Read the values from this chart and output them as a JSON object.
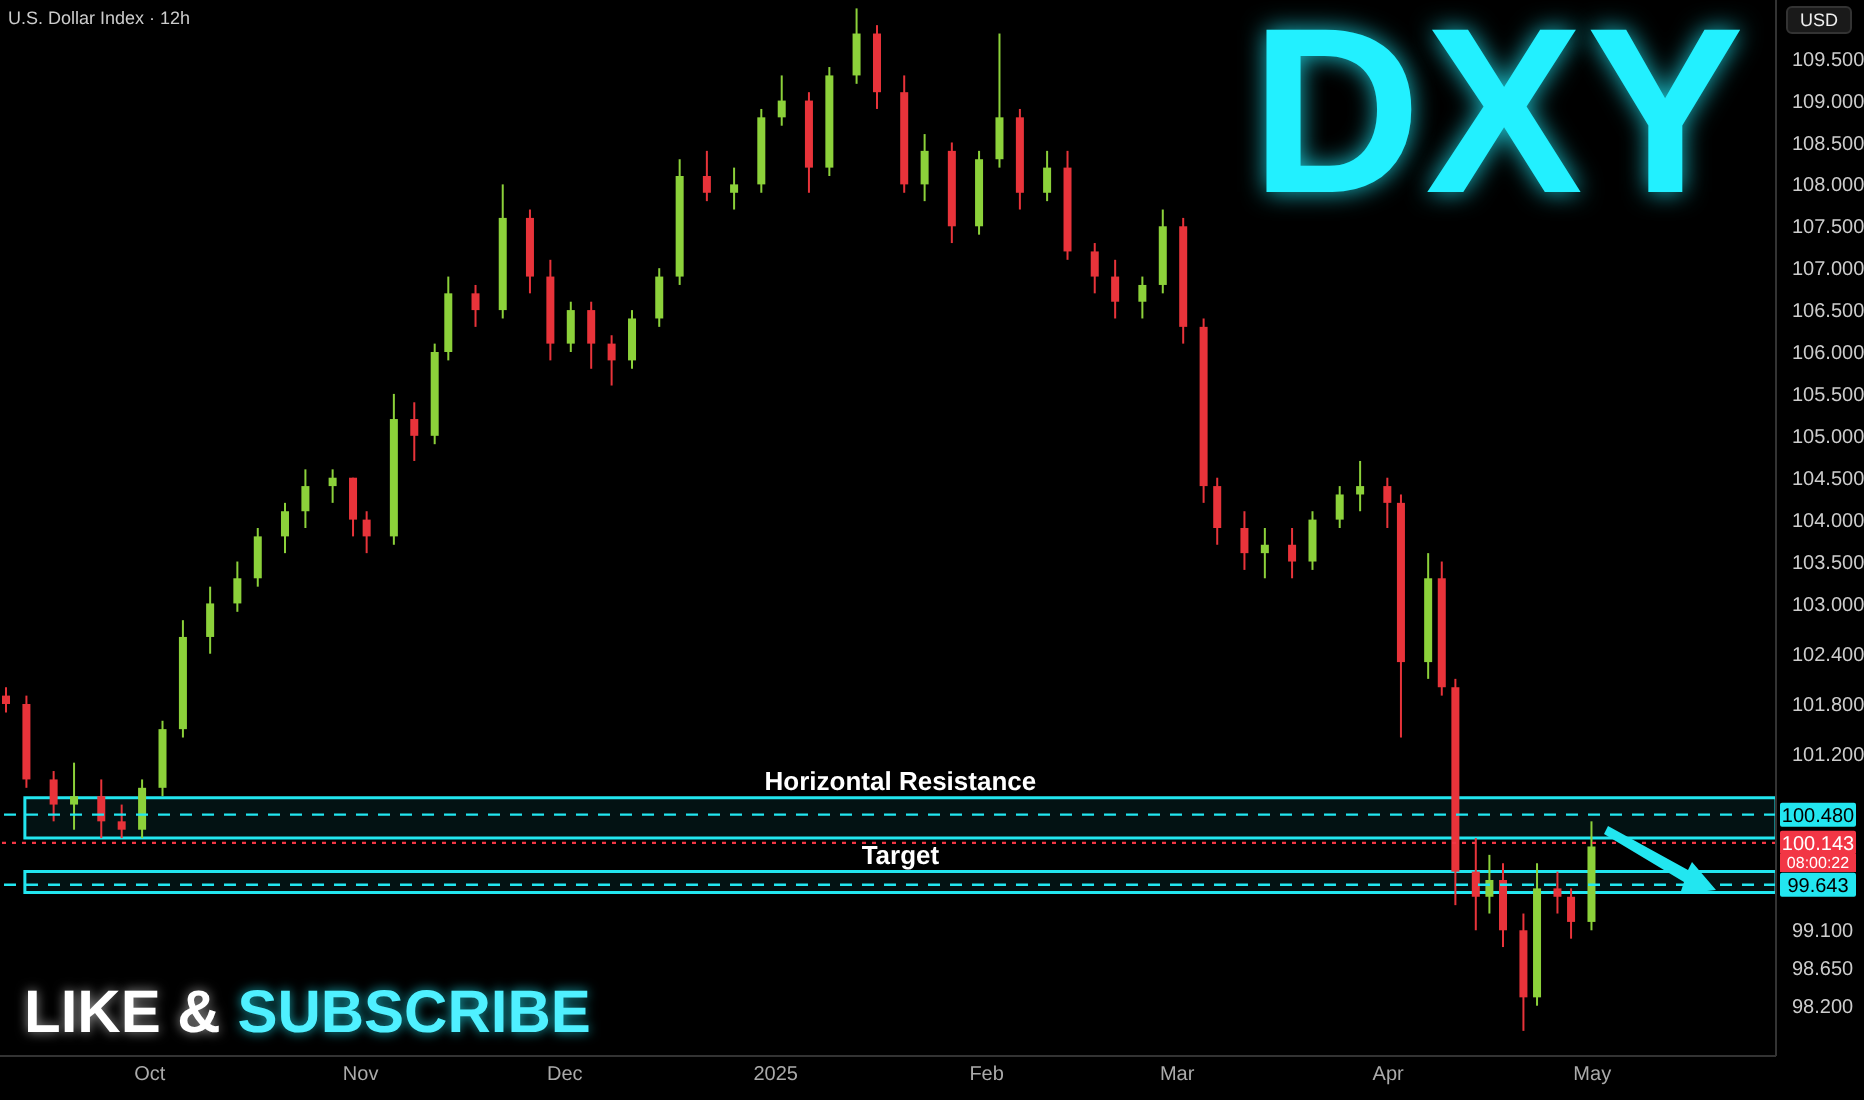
{
  "chart_data": {
    "type": "candlestick",
    "title": "U.S. Dollar Index · 12h",
    "ylabel": "USD",
    "x": [
      "2024-09-10",
      "2024-09-13",
      "2024-09-17",
      "2024-09-20",
      "2024-09-24",
      "2024-09-27",
      "2024-09-30",
      "2024-10-03",
      "2024-10-06",
      "2024-10-10",
      "2024-10-14",
      "2024-10-17",
      "2024-10-21",
      "2024-10-24",
      "2024-10-28",
      "2024-10-31",
      "2024-11-02",
      "2024-11-06",
      "2024-11-09",
      "2024-11-12",
      "2024-11-14",
      "2024-11-18",
      "2024-11-22",
      "2024-11-26",
      "2024-11-29",
      "2024-12-02",
      "2024-12-05",
      "2024-12-08",
      "2024-12-11",
      "2024-12-15",
      "2024-12-18",
      "2024-12-22",
      "2024-12-26",
      "2024-12-30",
      "2025-01-02",
      "2025-01-06",
      "2025-01-09",
      "2025-01-13",
      "2025-01-16",
      "2025-01-20",
      "2025-01-23",
      "2025-01-27",
      "2025-01-31",
      "2025-02-03",
      "2025-02-06",
      "2025-02-10",
      "2025-02-13",
      "2025-02-17",
      "2025-02-20",
      "2025-02-24",
      "2025-02-27",
      "2025-03-02",
      "2025-03-05",
      "2025-03-07",
      "2025-03-11",
      "2025-03-14",
      "2025-03-18",
      "2025-03-21",
      "2025-03-25",
      "2025-03-28",
      "2025-04-01",
      "2025-04-03",
      "2025-04-07",
      "2025-04-09",
      "2025-04-11",
      "2025-04-14",
      "2025-04-16",
      "2025-04-18",
      "2025-04-21",
      "2025-04-23",
      "2025-04-26",
      "2025-04-28",
      "2025-05-01"
    ],
    "ohlc": [
      [
        101.9,
        102.0,
        101.7,
        101.8
      ],
      [
        101.8,
        101.9,
        100.8,
        100.9
      ],
      [
        100.9,
        101.0,
        100.4,
        100.6
      ],
      [
        100.6,
        101.1,
        100.3,
        100.7
      ],
      [
        100.7,
        100.9,
        100.2,
        100.4
      ],
      [
        100.4,
        100.6,
        100.2,
        100.3
      ],
      [
        100.3,
        100.9,
        100.2,
        100.8
      ],
      [
        100.8,
        101.6,
        100.7,
        101.5
      ],
      [
        101.5,
        102.8,
        101.4,
        102.6
      ],
      [
        102.6,
        103.2,
        102.4,
        103.0
      ],
      [
        103.0,
        103.5,
        102.9,
        103.3
      ],
      [
        103.3,
        103.9,
        103.2,
        103.8
      ],
      [
        103.8,
        104.2,
        103.6,
        104.1
      ],
      [
        104.1,
        104.6,
        103.9,
        104.4
      ],
      [
        104.4,
        104.6,
        104.2,
        104.5
      ],
      [
        104.5,
        104.5,
        103.8,
        104.0
      ],
      [
        104.0,
        104.1,
        103.6,
        103.8
      ],
      [
        103.8,
        105.5,
        103.7,
        105.2
      ],
      [
        105.2,
        105.4,
        104.7,
        105.0
      ],
      [
        105.0,
        106.1,
        104.9,
        106.0
      ],
      [
        106.0,
        106.9,
        105.9,
        106.7
      ],
      [
        106.7,
        106.8,
        106.3,
        106.5
      ],
      [
        106.5,
        108.0,
        106.4,
        107.6
      ],
      [
        107.6,
        107.7,
        106.7,
        106.9
      ],
      [
        106.9,
        107.1,
        105.9,
        106.1
      ],
      [
        106.1,
        106.6,
        106.0,
        106.5
      ],
      [
        106.5,
        106.6,
        105.8,
        106.1
      ],
      [
        106.1,
        106.2,
        105.6,
        105.9
      ],
      [
        105.9,
        106.5,
        105.8,
        106.4
      ],
      [
        106.4,
        107.0,
        106.3,
        106.9
      ],
      [
        106.9,
        108.3,
        106.8,
        108.1
      ],
      [
        108.1,
        108.4,
        107.8,
        107.9
      ],
      [
        107.9,
        108.2,
        107.7,
        108.0
      ],
      [
        108.0,
        108.9,
        107.9,
        108.8
      ],
      [
        108.8,
        109.3,
        108.7,
        109.0
      ],
      [
        109.0,
        109.1,
        107.9,
        108.2
      ],
      [
        108.2,
        109.4,
        108.1,
        109.3
      ],
      [
        109.3,
        110.1,
        109.2,
        109.8
      ],
      [
        109.8,
        109.9,
        108.9,
        109.1
      ],
      [
        109.1,
        109.3,
        107.9,
        108.0
      ],
      [
        108.0,
        108.6,
        107.8,
        108.4
      ],
      [
        108.4,
        108.5,
        107.3,
        107.5
      ],
      [
        107.5,
        108.4,
        107.4,
        108.3
      ],
      [
        108.3,
        109.8,
        108.2,
        108.8
      ],
      [
        108.8,
        108.9,
        107.7,
        107.9
      ],
      [
        107.9,
        108.4,
        107.8,
        108.2
      ],
      [
        108.2,
        108.4,
        107.1,
        107.2
      ],
      [
        107.2,
        107.3,
        106.7,
        106.9
      ],
      [
        106.9,
        107.1,
        106.4,
        106.6
      ],
      [
        106.6,
        106.9,
        106.4,
        106.8
      ],
      [
        106.8,
        107.7,
        106.7,
        107.5
      ],
      [
        107.5,
        107.6,
        106.1,
        106.3
      ],
      [
        106.3,
        106.4,
        104.2,
        104.4
      ],
      [
        104.4,
        104.5,
        103.7,
        103.9
      ],
      [
        103.9,
        104.1,
        103.4,
        103.6
      ],
      [
        103.6,
        103.9,
        103.3,
        103.7
      ],
      [
        103.7,
        103.9,
        103.3,
        103.5
      ],
      [
        103.5,
        104.1,
        103.4,
        104.0
      ],
      [
        104.0,
        104.4,
        103.9,
        104.3
      ],
      [
        104.3,
        104.7,
        104.1,
        104.4
      ],
      [
        104.4,
        104.5,
        103.9,
        104.2
      ],
      [
        104.2,
        104.3,
        101.4,
        102.3
      ],
      [
        102.3,
        103.6,
        102.1,
        103.3
      ],
      [
        103.3,
        103.5,
        101.9,
        102.0
      ],
      [
        102.0,
        102.1,
        99.4,
        99.8
      ],
      [
        99.8,
        100.2,
        99.1,
        99.5
      ],
      [
        99.5,
        100.0,
        99.3,
        99.7
      ],
      [
        99.7,
        99.9,
        98.9,
        99.1
      ],
      [
        99.1,
        99.3,
        97.9,
        98.3
      ],
      [
        98.3,
        99.9,
        98.2,
        99.6
      ],
      [
        99.6,
        99.8,
        99.3,
        99.5
      ],
      [
        99.5,
        99.6,
        99.0,
        99.2
      ],
      [
        99.2,
        100.4,
        99.1,
        100.1
      ]
    ],
    "xlim": [
      "2024-09-09",
      "2025-05-28"
    ],
    "xticks": [
      {
        "value": "2024-10-01",
        "label": "Oct"
      },
      {
        "value": "2024-11-01",
        "label": "Nov"
      },
      {
        "value": "2024-12-01",
        "label": "Dec"
      },
      {
        "value": "2025-01-01",
        "label": "2025"
      },
      {
        "value": "2025-02-01",
        "label": "Feb"
      },
      {
        "value": "2025-03-01",
        "label": "Mar"
      },
      {
        "value": "2025-04-01",
        "label": "Apr"
      },
      {
        "value": "2025-05-01",
        "label": "May"
      }
    ],
    "ylim": [
      97.6,
      110.2
    ],
    "yticks": [
      {
        "value": 109.5,
        "label": "109.500"
      },
      {
        "value": 109,
        "label": "109.000"
      },
      {
        "value": 108.5,
        "label": "108.500"
      },
      {
        "value": 108,
        "label": "108.000"
      },
      {
        "value": 107.5,
        "label": "107.500"
      },
      {
        "value": 107,
        "label": "107.000"
      },
      {
        "value": 106.5,
        "label": "106.500"
      },
      {
        "value": 106,
        "label": "106.000"
      },
      {
        "value": 105.5,
        "label": "105.500"
      },
      {
        "value": 105,
        "label": "105.000"
      },
      {
        "value": 104.5,
        "label": "104.500"
      },
      {
        "value": 104,
        "label": "104.000"
      },
      {
        "value": 103.5,
        "label": "103.500"
      },
      {
        "value": 103,
        "label": "103.000"
      },
      {
        "value": 102.4,
        "label": "102.400"
      },
      {
        "value": 101.8,
        "label": "101.800"
      },
      {
        "value": 101.2,
        "label": "101.200"
      },
      {
        "value": 99.1,
        "label": "99.100"
      },
      {
        "value": 98.65,
        "label": "98.650"
      },
      {
        "value": 98.2,
        "label": "98.200"
      }
    ],
    "ref_lines": [
      {
        "axis": "y",
        "value": 100.48,
        "label": "100.480",
        "color": "#22e6f0",
        "line_style": "dashed"
      },
      {
        "axis": "y",
        "value": 100.143,
        "label": "100.143",
        "color": "#f23645",
        "line_style": "dotted"
      },
      {
        "axis": "y",
        "value": 99.643,
        "label": "99.643",
        "color": "#22e6f0",
        "line_style": "dashed"
      }
    ],
    "bands": [
      {
        "axis": "y",
        "from": 100.2,
        "to": 100.68,
        "label": "Horizontal Resistance",
        "color": "#22e6f0"
      },
      {
        "axis": "y",
        "from": 99.55,
        "to": 99.8,
        "label": "Target",
        "color": "#22e6f0"
      }
    ],
    "annotations": [
      "DXY",
      "LIKE & SUBSCRIBE",
      "08:00:22"
    ]
  }
}
